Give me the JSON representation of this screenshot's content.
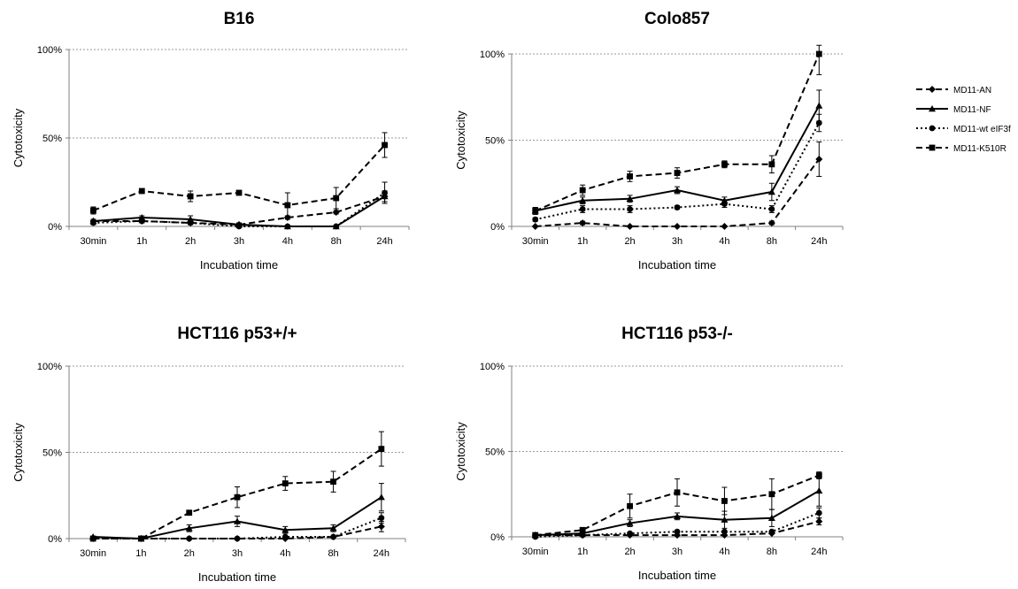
{
  "chart_data": {
    "type": "line",
    "categories": [
      "30min",
      "1h",
      "2h",
      "3h",
      "4h",
      "8h",
      "24h"
    ],
    "xlabel": "Incubation time",
    "ylabel": "Cytotoxicity",
    "ylim": [
      0,
      100
    ],
    "yticks": [
      "0%",
      "50%",
      "100%"
    ],
    "grid": "horizontal dashed at 50% and 100%",
    "legend": {
      "placement": "right",
      "entries": [
        {
          "name": "MD11-AN",
          "marker": "diamond",
          "line": "dashed"
        },
        {
          "name": "MD11-NF",
          "marker": "triangle",
          "line": "solid"
        },
        {
          "name": "MD11-wt eIF3f",
          "marker": "circle",
          "line": "dotted"
        },
        {
          "name": "MD11-K510R",
          "marker": "square",
          "line": "dashed"
        }
      ]
    },
    "panels": [
      {
        "title": "B16",
        "series": [
          {
            "name": "MD11-AN",
            "values": [
              3,
              3,
              2,
              1,
              5,
              8,
              17
            ],
            "errors": [
              1,
              1,
              1,
              1,
              1,
              1,
              3
            ]
          },
          {
            "name": "MD11-NF",
            "values": [
              3,
              5,
              4,
              1,
              0,
              0,
              17
            ],
            "errors": [
              1,
              1,
              2,
              1,
              0,
              0,
              3
            ]
          },
          {
            "name": "MD11-wt eIF3f",
            "values": [
              2,
              3,
              2,
              0,
              0,
              0,
              19
            ],
            "errors": [
              1,
              1,
              1,
              0,
              0,
              0,
              6
            ]
          },
          {
            "name": "MD11-K510R",
            "values": [
              9,
              20,
              17,
              19,
              12,
              16,
              46
            ],
            "errors": [
              2,
              1,
              3,
              1,
              7,
              6,
              7
            ]
          }
        ]
      },
      {
        "title": "Colo857",
        "series": [
          {
            "name": "MD11-AN",
            "values": [
              0,
              2,
              0,
              0,
              0,
              2,
              39
            ],
            "errors": [
              0,
              1,
              0,
              0,
              0,
              1,
              10
            ]
          },
          {
            "name": "MD11-NF",
            "values": [
              9,
              15,
              16,
              21,
              15,
              20,
              70
            ],
            "errors": [
              2,
              2,
              2,
              2,
              2,
              5,
              9
            ]
          },
          {
            "name": "MD11-wt eIF3f",
            "values": [
              4,
              10,
              10,
              11,
              13,
              10,
              60
            ],
            "errors": [
              1,
              2,
              2,
              1,
              2,
              2,
              5
            ]
          },
          {
            "name": "MD11-K510R",
            "values": [
              9,
              21,
              29,
              31,
              36,
              36,
              100
            ],
            "errors": [
              2,
              3,
              3,
              3,
              2,
              5,
              12
            ]
          }
        ]
      },
      {
        "title": "HCT116 p53+/+",
        "series": [
          {
            "name": "MD11-AN",
            "values": [
              0,
              0,
              0,
              0,
              0,
              1,
              7
            ],
            "errors": [
              0,
              0,
              0,
              0,
              0,
              0,
              3
            ]
          },
          {
            "name": "MD11-NF",
            "values": [
              1,
              0,
              6,
              10,
              5,
              6,
              24
            ],
            "errors": [
              0,
              0,
              2,
              3,
              2,
              2,
              8
            ]
          },
          {
            "name": "MD11-wt eIF3f",
            "values": [
              0,
              0,
              0,
              0,
              1,
              1,
              12
            ],
            "errors": [
              0,
              0,
              0,
              0,
              0,
              0,
              3
            ]
          },
          {
            "name": "MD11-K510R",
            "values": [
              0,
              0,
              15,
              24,
              32,
              33,
              52
            ],
            "errors": [
              0,
              0,
              1,
              6,
              4,
              6,
              10
            ]
          }
        ]
      },
      {
        "title": "HCT116 p53-/-",
        "series": [
          {
            "name": "MD11-AN",
            "values": [
              1,
              1,
              1,
              1,
              1,
              2,
              9
            ],
            "errors": [
              0,
              0,
              0,
              0,
              0,
              0,
              2
            ]
          },
          {
            "name": "MD11-NF",
            "values": [
              1,
              2,
              8,
              12,
              10,
              11,
              27
            ],
            "errors": [
              0,
              1,
              2,
              2,
              5,
              5,
              9
            ]
          },
          {
            "name": "MD11-wt eIF3f",
            "values": [
              0,
              1,
              2,
              3,
              3,
              3,
              14
            ],
            "errors": [
              0,
              0,
              0,
              0,
              0,
              0,
              3
            ]
          },
          {
            "name": "MD11-K510R",
            "values": [
              1,
              4,
              18,
              26,
              21,
              25,
              36
            ],
            "errors": [
              0,
              1,
              7,
              8,
              8,
              9,
              2
            ]
          }
        ]
      }
    ]
  }
}
